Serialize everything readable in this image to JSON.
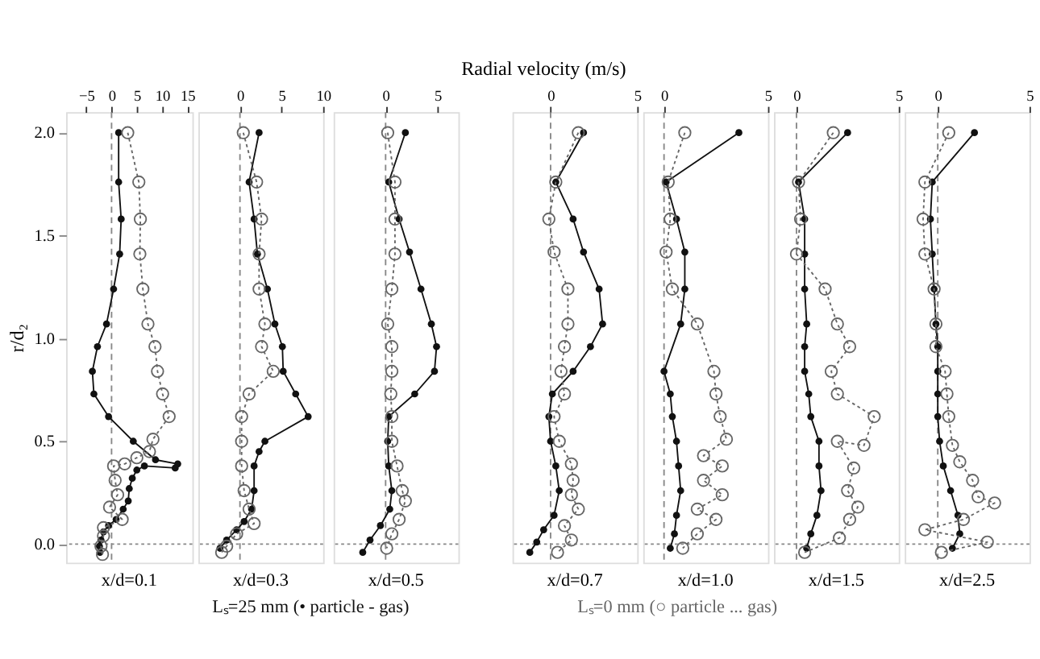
{
  "chart_data": [
    {
      "type": "line",
      "xlabel": "x/d=0.1",
      "ylabel": "r/d₂",
      "xlim": [
        -9,
        16
      ],
      "xticks": [
        -5,
        0,
        5,
        10,
        15
      ],
      "ylim": [
        -0.09,
        2.1
      ],
      "yticks": [
        {
          "value": 0,
          "label": "0.0"
        },
        {
          "value": 0.5,
          "label": "0.5"
        },
        {
          "value": 1,
          "label": "1.0"
        },
        {
          "value": 1.5,
          "label": "1.5"
        },
        {
          "value": 2,
          "label": "2.0"
        }
      ],
      "marker": "circle",
      "legend": "bottom",
      "ref_lines": [
        {
          "axis": "x",
          "value": 0,
          "line_style": "dashed",
          "color": "#888888"
        },
        {
          "axis": "y",
          "value": 0,
          "line_style": "dotted",
          "color": "#888888"
        }
      ],
      "series": [
        {
          "name": "Lₛ=25 mm (• particle - gas)",
          "type": "line",
          "line_style": "solid",
          "color": "#111111",
          "x": [
            1.4,
            1.4,
            1.9,
            1.6,
            0.4,
            -1.0,
            -2.8,
            -3.8,
            -3.5,
            -0.6,
            4.3,
            8.7,
            13.1,
            12.6,
            6.5,
            5.0,
            4.1,
            3.5,
            3.3,
            2.3,
            0.9,
            -0.6,
            -1.6,
            -2.1,
            -2.4,
            -2.3
          ],
          "values": [
            2.0,
            1.76,
            1.58,
            1.41,
            1.24,
            1.07,
            0.96,
            0.84,
            0.73,
            0.62,
            0.5,
            0.41,
            0.39,
            0.37,
            0.38,
            0.36,
            0.32,
            0.27,
            0.21,
            0.17,
            0.12,
            0.09,
            0.06,
            0.02,
            -0.01,
            -0.04
          ]
        },
        {
          "name": "Lₛ=0 mm (○ particle ... gas)",
          "type": "line",
          "line_style": "dotted",
          "color": "#666666",
          "x": [
            3.2,
            5.4,
            5.7,
            5.6,
            6.2,
            7.2,
            8.6,
            9.1,
            10.1,
            11.4,
            8.2,
            7.5,
            5.0,
            2.6,
            0.4,
            0.7,
            1.2,
            -0.4,
            2.1,
            -1.6,
            -1.6,
            -2.1,
            -1.8
          ],
          "values": [
            2.0,
            1.76,
            1.58,
            1.41,
            1.24,
            1.07,
            0.96,
            0.84,
            0.73,
            0.62,
            0.51,
            0.45,
            0.42,
            0.39,
            0.38,
            0.31,
            0.24,
            0.18,
            0.12,
            0.08,
            0.04,
            -0.01,
            -0.05
          ]
        }
      ]
    },
    {
      "type": "line",
      "xlabel": "x/d=0.3",
      "xlim": [
        -5,
        10
      ],
      "xticks": [
        0,
        5,
        10
      ],
      "ylim": [
        -0.09,
        2.1
      ],
      "tick_labels": "x",
      "marker": "circle",
      "ref_lines": [
        {
          "axis": "x",
          "value": 0,
          "line_style": "dashed",
          "color": "#888888"
        },
        {
          "axis": "y",
          "value": 0,
          "line_style": "dotted",
          "color": "#888888"
        }
      ],
      "series": [
        {
          "type": "line",
          "line_style": "solid",
          "color": "#111111",
          "x": [
            2.3,
            1.1,
            1.7,
            2.1,
            3.3,
            4.2,
            5.1,
            5.2,
            6.7,
            8.2,
            3.0,
            2.3,
            1.7,
            1.7,
            1.4,
            0.5,
            -0.4,
            -1.6,
            -2.4
          ],
          "values": [
            2.0,
            1.76,
            1.58,
            1.41,
            1.24,
            1.07,
            0.96,
            0.84,
            0.73,
            0.62,
            0.5,
            0.45,
            0.38,
            0.26,
            0.17,
            0.11,
            0.07,
            0.02,
            -0.02
          ]
        },
        {
          "type": "line",
          "line_style": "dotted",
          "color": "#666666",
          "x": [
            0.4,
            2.0,
            2.6,
            2.3,
            2.3,
            3.0,
            2.6,
            4.0,
            1.1,
            0.2,
            0.2,
            0.2,
            0.5,
            1.1,
            1.7,
            -0.4,
            -1.6,
            -2.2
          ],
          "values": [
            2.0,
            1.76,
            1.58,
            1.41,
            1.24,
            1.07,
            0.96,
            0.84,
            0.73,
            0.62,
            0.5,
            0.38,
            0.26,
            0.17,
            0.1,
            0.05,
            -0.01,
            -0.04
          ]
        }
      ]
    },
    {
      "type": "line",
      "xlabel": "x/d=0.5",
      "xlim": [
        -5,
        7
      ],
      "xticks": [
        0,
        5
      ],
      "ylim": [
        -0.09,
        2.1
      ],
      "tick_labels": "x",
      "marker": "circle",
      "ref_lines": [
        {
          "axis": "x",
          "value": 0,
          "line_style": "dashed",
          "color": "#888888"
        },
        {
          "axis": "y",
          "value": 0,
          "line_style": "dotted",
          "color": "#888888"
        }
      ],
      "series": [
        {
          "type": "line",
          "line_style": "solid",
          "color": "#111111",
          "x": [
            1.9,
            0.3,
            1.3,
            2.3,
            3.4,
            4.4,
            4.9,
            4.7,
            2.8,
            0.3,
            0.2,
            0.3,
            0.6,
            0.4,
            -0.5,
            -1.5,
            -2.2
          ],
          "values": [
            2.0,
            1.76,
            1.58,
            1.42,
            1.24,
            1.07,
            0.96,
            0.84,
            0.73,
            0.62,
            0.5,
            0.38,
            0.26,
            0.17,
            0.09,
            0.02,
            -0.04
          ]
        },
        {
          "type": "line",
          "line_style": "dotted",
          "color": "#666666",
          "x": [
            0.2,
            0.9,
            0.9,
            0.9,
            0.6,
            0.2,
            0.6,
            0.6,
            0.5,
            0.6,
            0.6,
            1.1,
            1.6,
            1.9,
            1.3,
            0.6,
            0.1
          ],
          "values": [
            2.0,
            1.76,
            1.58,
            1.41,
            1.24,
            1.07,
            0.96,
            0.84,
            0.73,
            0.62,
            0.5,
            0.38,
            0.26,
            0.21,
            0.12,
            0.05,
            -0.02
          ]
        }
      ]
    },
    {
      "type": "line",
      "title": "Radial velocity (m/s)",
      "xlabel": "x/d=0.7",
      "xlim": [
        -2.2,
        5
      ],
      "xticks": [
        0,
        5
      ],
      "ylim": [
        -0.09,
        2.1
      ],
      "tick_labels": "x",
      "marker": "circle",
      "ref_lines": [
        {
          "axis": "x",
          "value": 0,
          "line_style": "dashed",
          "color": "#888888"
        },
        {
          "axis": "y",
          "value": 0,
          "line_style": "dotted",
          "color": "#888888"
        }
      ],
      "series": [
        {
          "type": "line",
          "line_style": "solid",
          "color": "#111111",
          "x": [
            1.9,
            0.3,
            1.3,
            1.9,
            2.8,
            3.0,
            2.3,
            1.3,
            0.1,
            -0.1,
            0.0,
            0.3,
            0.5,
            0.2,
            -0.4,
            -0.8,
            -1.2
          ],
          "values": [
            2.0,
            1.76,
            1.58,
            1.42,
            1.24,
            1.07,
            0.96,
            0.84,
            0.73,
            0.62,
            0.5,
            0.38,
            0.26,
            0.14,
            0.07,
            0.01,
            -0.04
          ]
        },
        {
          "type": "line",
          "line_style": "dotted",
          "color": "#666666",
          "x": [
            1.6,
            0.3,
            -0.1,
            0.2,
            1.0,
            1.0,
            0.8,
            0.6,
            0.8,
            0.2,
            0.5,
            1.2,
            1.3,
            1.2,
            1.6,
            0.8,
            1.2,
            0.4
          ],
          "values": [
            2.0,
            1.76,
            1.58,
            1.42,
            1.24,
            1.07,
            0.96,
            0.84,
            0.73,
            0.62,
            0.5,
            0.39,
            0.31,
            0.24,
            0.17,
            0.09,
            0.02,
            -0.04
          ]
        }
      ]
    },
    {
      "type": "line",
      "xlabel": "x/d=1.0",
      "xlim": [
        -1,
        5
      ],
      "xticks": [
        0,
        5
      ],
      "ylim": [
        -0.09,
        2.1
      ],
      "tick_labels": "x",
      "marker": "circle",
      "ref_lines": [
        {
          "axis": "x",
          "value": 0,
          "line_style": "dashed",
          "color": "#888888"
        },
        {
          "axis": "y",
          "value": 0,
          "line_style": "dotted",
          "color": "#888888"
        }
      ],
      "series": [
        {
          "type": "line",
          "line_style": "solid",
          "color": "#111111",
          "x": [
            3.6,
            0.1,
            0.6,
            1.0,
            1.0,
            0.8,
            0.0,
            0.3,
            0.4,
            0.6,
            0.7,
            0.8,
            0.6,
            0.5,
            0.3
          ],
          "values": [
            2.0,
            1.76,
            1.58,
            1.42,
            1.24,
            1.07,
            0.84,
            0.73,
            0.62,
            0.5,
            0.38,
            0.26,
            0.14,
            0.05,
            -0.02
          ]
        },
        {
          "type": "line",
          "line_style": "dotted",
          "color": "#666666",
          "x": [
            1.0,
            0.2,
            0.3,
            0.1,
            0.4,
            1.6,
            2.4,
            2.5,
            2.7,
            3.0,
            1.9,
            2.8,
            1.9,
            2.8,
            1.6,
            2.5,
            1.6,
            0.9
          ],
          "values": [
            2.0,
            1.76,
            1.58,
            1.42,
            1.24,
            1.07,
            0.84,
            0.73,
            0.62,
            0.51,
            0.43,
            0.38,
            0.31,
            0.24,
            0.17,
            0.12,
            0.05,
            -0.02
          ]
        }
      ]
    },
    {
      "type": "line",
      "xlabel": "x/d=1.5",
      "xlim": [
        -1.1,
        5
      ],
      "xticks": [
        0,
        5
      ],
      "ylim": [
        -0.09,
        2.1
      ],
      "tick_labels": "x",
      "marker": "circle",
      "ref_lines": [
        {
          "axis": "x",
          "value": 0,
          "line_style": "dashed",
          "color": "#888888"
        },
        {
          "axis": "y",
          "value": 0,
          "line_style": "dotted",
          "color": "#888888"
        }
      ],
      "series": [
        {
          "type": "line",
          "line_style": "solid",
          "color": "#111111",
          "x": [
            2.5,
            0.1,
            0.4,
            0.4,
            0.4,
            0.5,
            0.4,
            0.4,
            0.6,
            0.7,
            1.1,
            1.1,
            1.2,
            1.0,
            0.7,
            0.5
          ],
          "values": [
            2.0,
            1.76,
            1.58,
            1.41,
            1.24,
            1.07,
            0.96,
            0.84,
            0.73,
            0.62,
            0.5,
            0.38,
            0.26,
            0.14,
            0.05,
            -0.02
          ]
        },
        {
          "type": "line",
          "line_style": "dotted",
          "color": "#666666",
          "x": [
            1.8,
            0.1,
            0.2,
            0.0,
            1.4,
            2.0,
            2.6,
            1.7,
            2.0,
            3.8,
            3.3,
            2.0,
            2.8,
            2.5,
            3.0,
            2.6,
            2.1,
            0.4
          ],
          "values": [
            2.0,
            1.76,
            1.58,
            1.41,
            1.24,
            1.07,
            0.96,
            0.84,
            0.73,
            0.62,
            0.48,
            0.5,
            0.37,
            0.26,
            0.18,
            0.12,
            0.03,
            -0.04
          ]
        }
      ]
    },
    {
      "type": "line",
      "xlabel": "x/d=2.5",
      "xlim": [
        -1.8,
        5
      ],
      "xticks": [
        0,
        5
      ],
      "ylim": [
        -0.09,
        2.1
      ],
      "tick_labels": "x",
      "marker": "circle",
      "ref_lines": [
        {
          "axis": "x",
          "value": 0,
          "line_style": "dashed",
          "color": "#888888"
        },
        {
          "axis": "y",
          "value": 0,
          "line_style": "dotted",
          "color": "#888888"
        }
      ],
      "series": [
        {
          "type": "line",
          "line_style": "solid",
          "color": "#111111",
          "x": [
            2.0,
            -0.3,
            -0.4,
            -0.3,
            -0.2,
            -0.1,
            0.0,
            0.0,
            0.0,
            0.0,
            0.1,
            0.3,
            0.7,
            1.1,
            1.2,
            0.8
          ],
          "values": [
            2.0,
            1.76,
            1.58,
            1.41,
            1.24,
            1.07,
            0.96,
            0.84,
            0.73,
            0.62,
            0.5,
            0.38,
            0.26,
            0.14,
            0.05,
            -0.02
          ]
        },
        {
          "type": "line",
          "line_style": "dotted",
          "color": "#666666",
          "x": [
            0.6,
            -0.7,
            -0.8,
            -0.7,
            -0.2,
            -0.1,
            -0.1,
            0.4,
            0.5,
            0.6,
            0.8,
            1.2,
            1.9,
            2.2,
            3.1,
            1.4,
            -0.7,
            2.7,
            0.2
          ],
          "values": [
            2.0,
            1.76,
            1.58,
            1.41,
            1.24,
            1.07,
            0.96,
            0.84,
            0.73,
            0.62,
            0.48,
            0.4,
            0.31,
            0.23,
            0.2,
            0.12,
            0.07,
            0.01,
            -0.04
          ]
        }
      ]
    }
  ]
}
